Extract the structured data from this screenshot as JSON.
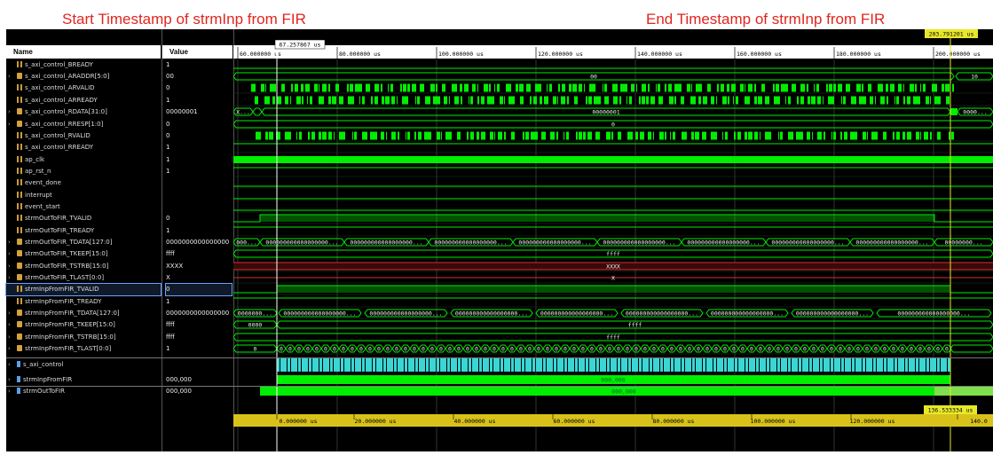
{
  "annotations": {
    "start": "Start Timestamp of strmInp from FIR",
    "end": "End Timestamp of strmInp from FIR"
  },
  "columns": {
    "name": "Name",
    "value": "Value"
  },
  "colors": {
    "wave": "#00ee00",
    "cursor": "#e8e82a",
    "bus_cyan": "#3ad6d6",
    "x_red": "#d93030",
    "ruler": "#d8c21a"
  },
  "cursors": {
    "start_label": "67.257867 us",
    "end_label": "203.791201 us",
    "delta_label": "136.533334 us"
  },
  "time_ruler": {
    "unit": "us",
    "ticks": [
      "60.000000 us",
      "80.000000 us",
      "100.000000 us",
      "120.000000 us",
      "140.000000 us",
      "160.000000 us",
      "180.000000 us",
      "200.000000 us"
    ]
  },
  "delta_ruler": {
    "ticks": [
      "0.000000 us",
      "20.000000 us",
      "40.000000 us",
      "60.000000 us",
      "80.000000 us",
      "100.000000 us",
      "120.000000 us",
      "140.0"
    ]
  },
  "signals": [
    {
      "name": "s_axi_control_BREADY",
      "value": "1",
      "kind": "bit",
      "expand": false
    },
    {
      "name": "s_axi_control_ARADDR[5:0]",
      "value": "00",
      "kind": "bus",
      "expand": true
    },
    {
      "name": "s_axi_control_ARVALID",
      "value": "0",
      "kind": "bit",
      "expand": false
    },
    {
      "name": "s_axi_control_ARREADY",
      "value": "1",
      "kind": "bit",
      "expand": false
    },
    {
      "name": "s_axi_control_RDATA[31:0]",
      "value": "00000001",
      "kind": "bus",
      "expand": true
    },
    {
      "name": "s_axi_control_RRESP[1:0]",
      "value": "0",
      "kind": "bus",
      "expand": true
    },
    {
      "name": "s_axi_control_RVALID",
      "value": "0",
      "kind": "bit",
      "expand": false
    },
    {
      "name": "s_axi_control_RREADY",
      "value": "1",
      "kind": "bit",
      "expand": false
    },
    {
      "name": "ap_clk",
      "value": "1",
      "kind": "bit",
      "expand": false
    },
    {
      "name": "ap_rst_n",
      "value": "1",
      "kind": "bit",
      "expand": false
    },
    {
      "name": "event_done",
      "value": "",
      "kind": "bit",
      "expand": false
    },
    {
      "name": "interrupt",
      "value": "",
      "kind": "bit",
      "expand": false
    },
    {
      "name": "event_start",
      "value": "",
      "kind": "bit",
      "expand": false
    },
    {
      "name": "strmOutToFIR_TVALID",
      "value": "0",
      "kind": "bit",
      "expand": false
    },
    {
      "name": "strmOutToFIR_TREADY",
      "value": "1",
      "kind": "bit",
      "expand": false
    },
    {
      "name": "strmOutToFIR_TDATA[127:0]",
      "value": "0000000000000000",
      "kind": "bus",
      "expand": true
    },
    {
      "name": "strmOutToFIR_TKEEP[15:0]",
      "value": "ffff",
      "kind": "bus",
      "expand": true
    },
    {
      "name": "strmOutToFIR_TSTRB[15:0]",
      "value": "XXXX",
      "kind": "bus",
      "expand": true
    },
    {
      "name": "strmOutToFIR_TLAST[0:0]",
      "value": "X",
      "kind": "bus",
      "expand": true
    },
    {
      "name": "strmInpFromFIR_TVALID",
      "value": "0",
      "kind": "bit",
      "expand": false,
      "selected": true
    },
    {
      "name": "strmInpFromFIR_TREADY",
      "value": "1",
      "kind": "bit",
      "expand": false
    },
    {
      "name": "strmInpFromFIR_TDATA[127:0]",
      "value": "0000000000000000",
      "kind": "bus",
      "expand": true
    },
    {
      "name": "strmInpFromFIR_TKEEP[15:0]",
      "value": "ffff",
      "kind": "bus",
      "expand": true
    },
    {
      "name": "strmInpFromFIR_TSTRB[15:0]",
      "value": "ffff",
      "kind": "bus",
      "expand": true
    },
    {
      "name": "strmInpFromFIR_TLAST[0:0]",
      "value": "1",
      "kind": "bus",
      "expand": true
    },
    {
      "name": "s_axi_control",
      "value": "",
      "kind": "grp",
      "expand": true
    },
    {
      "name": "strmInpFromFIR",
      "value": "000,000",
      "kind": "grp",
      "expand": true
    },
    {
      "name": "strmOutToFIR",
      "value": "000,000",
      "kind": "grp",
      "expand": true
    }
  ],
  "bus_labels": {
    "araddr": "00",
    "araddr_end": "10",
    "rdata": "00000001",
    "rdata_start": "X...",
    "rdata_end": "0000...",
    "rresp": "0",
    "out_tdata_seg": "000000000000000000...",
    "out_tdata_first": "000...",
    "out_tdata_last": "00000000...",
    "out_tkeep": "ffff",
    "out_tstrb": "XXXX",
    "out_tlast": "X",
    "inp_tdata_first": "0000000...",
    "inp_tdata_seg": "000000000000000000...",
    "inp_tkeep": "ffff",
    "inp_tkeep_first": "0000",
    "inp_tstrb": "ffff",
    "inp_tlast_first": "0",
    "inp_tlast_seg": "0",
    "grp_inp": "000,000",
    "grp_out": "000,000"
  }
}
